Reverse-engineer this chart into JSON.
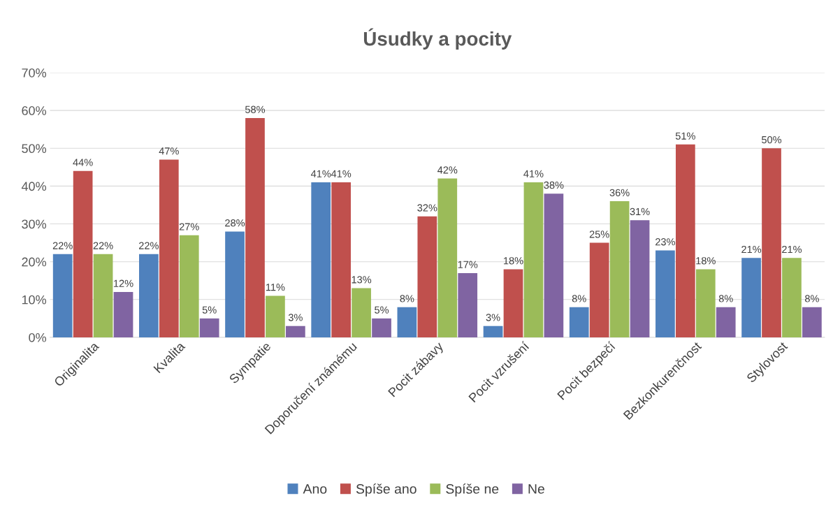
{
  "chart_data": {
    "type": "bar",
    "title": "Úsudky a pocity",
    "categories": [
      "Originalita",
      "Kvalita",
      "Sympatie",
      "Doporučení známému",
      "Pocit zábavy",
      "Pocit vzrušení",
      "Pocit bezpečí",
      "Bezkonkurenčnost",
      "Stylovost"
    ],
    "series": [
      {
        "name": "Ano",
        "color": "#4f81bd",
        "values": [
          22,
          22,
          28,
          41,
          8,
          3,
          8,
          23,
          21
        ],
        "value_labels": [
          "22%",
          "22%",
          "28%",
          "41%",
          "8%",
          "3%",
          "8%",
          "23%",
          "21%"
        ]
      },
      {
        "name": "Spíše ano",
        "color": "#c0504d",
        "values": [
          44,
          47,
          58,
          41,
          32,
          18,
          25,
          51,
          50
        ],
        "value_labels": [
          "44%",
          "47%",
          "58%",
          "41%",
          "32%",
          "18%",
          "25%",
          "51%",
          "50%"
        ]
      },
      {
        "name": "Spíše ne",
        "color": "#9bbb59",
        "values": [
          22,
          27,
          11,
          13,
          42,
          41,
          36,
          18,
          21
        ],
        "value_labels": [
          "22%",
          "27%",
          "11%",
          "13%",
          "42%",
          "41%",
          "36%",
          "18%",
          "21%"
        ]
      },
      {
        "name": "Ne",
        "color": "#8064a2",
        "values": [
          12,
          5,
          3,
          5,
          17,
          38,
          31,
          8,
          8
        ],
        "value_labels": [
          "12%",
          "5%",
          "3%",
          "5%",
          "17%",
          "38%",
          "31%",
          "8%",
          "8%"
        ]
      }
    ],
    "ylim": [
      0,
      70
    ],
    "yticks": [
      {
        "value": 0,
        "label": "0%"
      },
      {
        "value": 10,
        "label": "10%"
      },
      {
        "value": 20,
        "label": "20%"
      },
      {
        "value": 30,
        "label": "30%"
      },
      {
        "value": 40,
        "label": "40%"
      },
      {
        "value": 50,
        "label": "50%"
      },
      {
        "value": 60,
        "label": "60%"
      },
      {
        "value": 70,
        "label": "70%"
      }
    ],
    "grid": "y",
    "legend": "bottom"
  }
}
